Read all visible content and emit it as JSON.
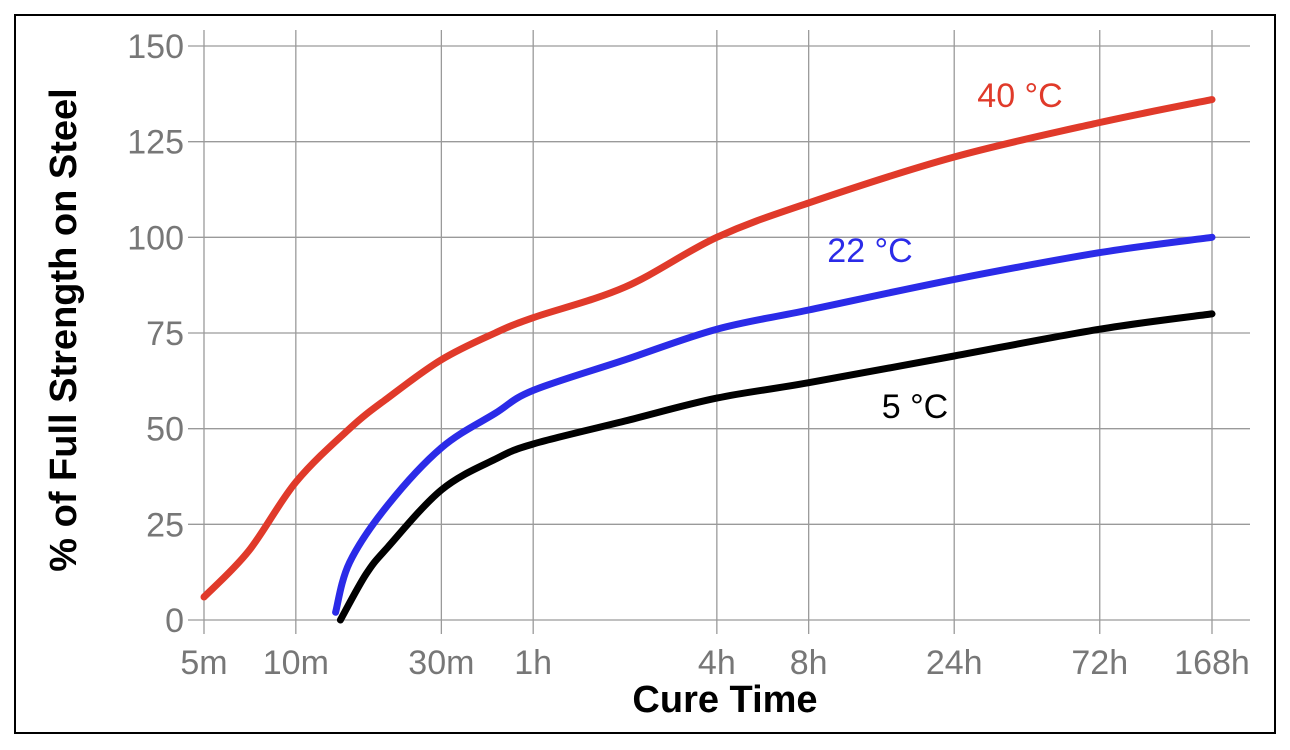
{
  "chart_data": {
    "type": "line",
    "xlabel": "Cure Time",
    "ylabel": "% of Full Strength on Steel",
    "x_scale": "log",
    "x_unit": "minutes",
    "x_ticks": [
      {
        "value": 5,
        "label": "5m"
      },
      {
        "value": 10,
        "label": "10m"
      },
      {
        "value": 30,
        "label": "30m"
      },
      {
        "value": 60,
        "label": "1h"
      },
      {
        "value": 240,
        "label": "4h"
      },
      {
        "value": 480,
        "label": "8h"
      },
      {
        "value": 1440,
        "label": "24h"
      },
      {
        "value": 4320,
        "label": "72h"
      },
      {
        "value": 10080,
        "label": "168h"
      }
    ],
    "y_ticks": [
      0,
      25,
      50,
      75,
      100,
      125,
      150
    ],
    "xlim": [
      5,
      10080
    ],
    "ylim": [
      0,
      150
    ],
    "grid": true,
    "series": [
      {
        "name": "40 °C",
        "color": "#e03a2a",
        "points": [
          [
            5,
            6
          ],
          [
            7,
            18
          ],
          [
            10,
            36
          ],
          [
            15,
            50
          ],
          [
            20,
            58
          ],
          [
            30,
            68
          ],
          [
            45,
            75
          ],
          [
            60,
            79
          ],
          [
            120,
            87
          ],
          [
            240,
            100
          ],
          [
            480,
            109
          ],
          [
            1440,
            121
          ],
          [
            4320,
            130
          ],
          [
            10080,
            136
          ]
        ]
      },
      {
        "name": "22 °C",
        "color": "#2b2be8",
        "points": [
          [
            13.5,
            2
          ],
          [
            15,
            15
          ],
          [
            20,
            30
          ],
          [
            30,
            45
          ],
          [
            45,
            54
          ],
          [
            60,
            60
          ],
          [
            120,
            68
          ],
          [
            240,
            76
          ],
          [
            480,
            81
          ],
          [
            1440,
            89
          ],
          [
            4320,
            96
          ],
          [
            10080,
            100
          ]
        ]
      },
      {
        "name": "5 °C",
        "color": "#000000",
        "points": [
          [
            14,
            0
          ],
          [
            17,
            12
          ],
          [
            20,
            19
          ],
          [
            30,
            34
          ],
          [
            45,
            42
          ],
          [
            60,
            46
          ],
          [
            120,
            52
          ],
          [
            240,
            58
          ],
          [
            480,
            62
          ],
          [
            1440,
            69
          ],
          [
            4320,
            76
          ],
          [
            10080,
            80
          ]
        ]
      }
    ]
  }
}
